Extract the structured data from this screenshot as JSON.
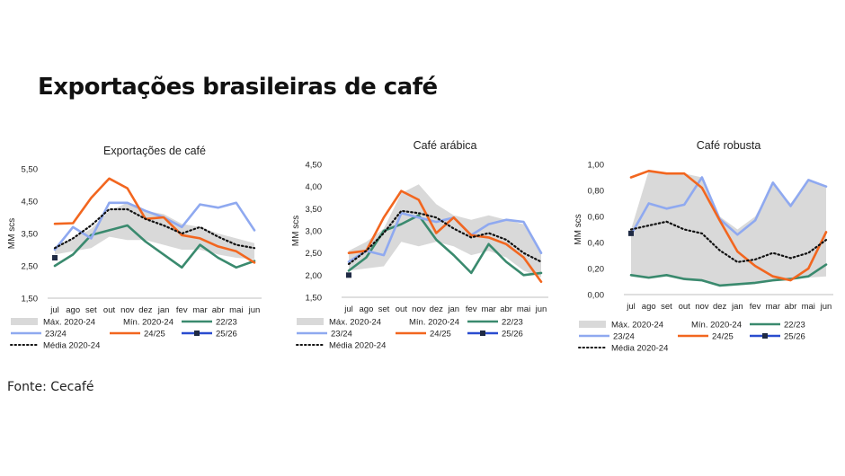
{
  "page": {
    "title": "Exportações brasileiras de café",
    "source": "Fonte: Cecafé"
  },
  "legend_labels": {
    "max": "Máx. 2020-24",
    "min": "Mín. 2020-24",
    "s2223": "22/23",
    "s2324": "23/24",
    "s2425": "24/25",
    "s2526": "25/26",
    "avg": "Média 2020-24"
  },
  "colors": {
    "band": "#d9d9d9",
    "s2223": "#3a8a6e",
    "s2324": "#8fa9f0",
    "s2425": "#f2661f",
    "s2526": "#1f2a44",
    "avg": "#111111",
    "axis": "#bfbfbf"
  },
  "chart_data": [
    {
      "type": "line",
      "title": "Exportações de café",
      "ylabel": "MM scs",
      "categories": [
        "jul",
        "ago",
        "set",
        "out",
        "nov",
        "dez",
        "jan",
        "fev",
        "mar",
        "abr",
        "mai",
        "jun"
      ],
      "y_ticks": [
        "1,50",
        "2,50",
        "3,50",
        "4,50",
        "5,50"
      ],
      "ylim": [
        1.5,
        5.5
      ],
      "band": {
        "max": [
          3.1,
          3.35,
          3.65,
          4.2,
          4.45,
          4.2,
          4.1,
          3.8,
          3.7,
          3.5,
          3.35,
          3.2
        ],
        "min": [
          2.85,
          2.95,
          3.05,
          3.4,
          3.3,
          3.3,
          3.15,
          3.0,
          3.0,
          2.85,
          2.75,
          2.7
        ]
      },
      "series": [
        {
          "name": "22/23",
          "key": "s2223",
          "values": [
            2.5,
            2.85,
            3.45,
            3.6,
            3.75,
            3.25,
            2.85,
            2.45,
            3.15,
            2.75,
            2.45,
            2.65
          ]
        },
        {
          "name": "23/24",
          "key": "s2324",
          "values": [
            3.0,
            3.7,
            3.35,
            4.45,
            4.45,
            4.2,
            4.0,
            3.7,
            4.4,
            4.3,
            4.45,
            3.6
          ]
        },
        {
          "name": "24/25",
          "key": "s2425",
          "values": [
            3.8,
            3.82,
            4.6,
            5.2,
            4.9,
            3.95,
            4.0,
            3.45,
            3.35,
            3.1,
            2.95,
            2.6
          ]
        },
        {
          "name": "25/26",
          "key": "s2526",
          "values": [
            2.75,
            null,
            null,
            null,
            null,
            null,
            null,
            null,
            null,
            null,
            null,
            null
          ]
        },
        {
          "name": "Média 2020-24",
          "key": "avg",
          "values": [
            3.05,
            3.35,
            3.75,
            4.25,
            4.25,
            3.95,
            3.75,
            3.5,
            3.7,
            3.4,
            3.15,
            3.05
          ]
        }
      ]
    },
    {
      "type": "line",
      "title": "Café arábica",
      "ylabel": "MM scs",
      "categories": [
        "jul",
        "ago",
        "set",
        "out",
        "nov",
        "dez",
        "jan",
        "fev",
        "mar",
        "abr",
        "mai",
        "jun"
      ],
      "y_ticks": [
        "1,50",
        "2,00",
        "2,50",
        "3,00",
        "3,50",
        "4,00",
        "4,50"
      ],
      "ylim": [
        1.5,
        4.5
      ],
      "band": {
        "max": [
          2.55,
          2.75,
          3.05,
          3.85,
          4.05,
          3.6,
          3.35,
          3.25,
          3.35,
          3.25,
          3.15,
          2.5
        ],
        "min": [
          2.1,
          2.15,
          2.2,
          2.75,
          2.65,
          2.75,
          2.65,
          2.45,
          2.55,
          2.4,
          2.1,
          1.95
        ]
      },
      "series": [
        {
          "name": "22/23",
          "key": "s2223",
          "values": [
            2.1,
            2.4,
            3.0,
            3.15,
            3.35,
            2.8,
            2.45,
            2.05,
            2.7,
            2.3,
            2.0,
            2.05
          ]
        },
        {
          "name": "23/24",
          "key": "s2324",
          "values": [
            2.3,
            2.55,
            2.45,
            3.4,
            3.3,
            3.2,
            3.3,
            2.9,
            3.15,
            3.25,
            3.2,
            2.5
          ]
        },
        {
          "name": "24/25",
          "key": "s2425",
          "values": [
            2.5,
            2.55,
            3.3,
            3.9,
            3.7,
            2.95,
            3.3,
            2.9,
            2.85,
            2.7,
            2.4,
            1.85
          ]
        },
        {
          "name": "25/26",
          "key": "s2526",
          "values": [
            2.0,
            null,
            null,
            null,
            null,
            null,
            null,
            null,
            null,
            null,
            null,
            null
          ]
        },
        {
          "name": "Média 2020-24",
          "key": "avg",
          "values": [
            2.25,
            2.55,
            2.95,
            3.45,
            3.4,
            3.3,
            3.05,
            2.85,
            2.95,
            2.8,
            2.5,
            2.3
          ]
        }
      ]
    },
    {
      "type": "line",
      "title": "Café robusta",
      "ylabel": "MM scs",
      "categories": [
        "jul",
        "ago",
        "set",
        "out",
        "nov",
        "dez",
        "jan",
        "fev",
        "mar",
        "abr",
        "mai",
        "jun"
      ],
      "y_ticks": [
        "0,00",
        "0,20",
        "0,40",
        "0,60",
        "0,80",
        "1,00"
      ],
      "ylim": [
        0,
        1.0
      ],
      "band": {
        "max": [
          0.5,
          0.95,
          0.93,
          0.93,
          0.9,
          0.6,
          0.5,
          0.6,
          0.85,
          0.7,
          0.88,
          0.82
        ],
        "min": [
          0.14,
          0.12,
          0.14,
          0.11,
          0.1,
          0.06,
          0.07,
          0.08,
          0.1,
          0.12,
          0.13,
          0.14
        ]
      },
      "series": [
        {
          "name": "22/23",
          "key": "s2223",
          "values": [
            0.15,
            0.13,
            0.15,
            0.12,
            0.11,
            0.07,
            0.08,
            0.09,
            0.11,
            0.12,
            0.14,
            0.23
          ]
        },
        {
          "name": "23/24",
          "key": "s2324",
          "values": [
            0.46,
            0.7,
            0.66,
            0.69,
            0.9,
            0.58,
            0.46,
            0.57,
            0.86,
            0.68,
            0.88,
            0.83
          ]
        },
        {
          "name": "24/25",
          "key": "s2425",
          "values": [
            0.9,
            0.95,
            0.93,
            0.93,
            0.82,
            0.57,
            0.33,
            0.22,
            0.14,
            0.11,
            0.2,
            0.48
          ]
        },
        {
          "name": "25/26",
          "key": "s2526",
          "values": [
            0.47,
            null,
            null,
            null,
            null,
            null,
            null,
            null,
            null,
            null,
            null,
            null
          ]
        },
        {
          "name": "Média 2020-24",
          "key": "avg",
          "values": [
            0.5,
            0.53,
            0.56,
            0.5,
            0.47,
            0.34,
            0.25,
            0.27,
            0.32,
            0.28,
            0.32,
            0.42
          ]
        }
      ]
    }
  ]
}
